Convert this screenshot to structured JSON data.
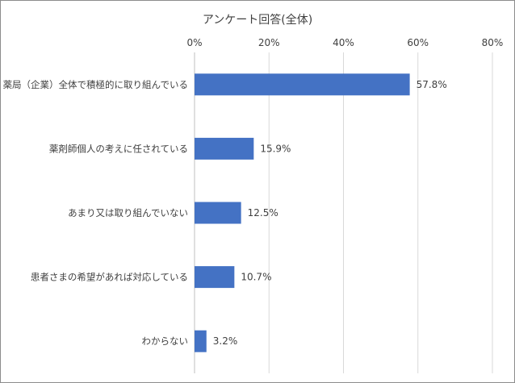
{
  "chart_data": {
    "type": "bar",
    "orientation": "horizontal",
    "title": "アンケート回答(全体)",
    "categories": [
      "薬局（企業）全体で積極的に取り組んでいる",
      "薬剤師個人の考えに任されている",
      "あまり又は取り組んでいない",
      "患者さまの希望があれば対応している",
      "わからない"
    ],
    "values": [
      57.8,
      15.9,
      12.5,
      10.7,
      3.2
    ],
    "value_labels": [
      "57.8%",
      "15.9%",
      "12.5%",
      "10.7%",
      "3.2%"
    ],
    "x_ticks": [
      0,
      20,
      40,
      60,
      80
    ],
    "x_tick_labels": [
      "0%",
      "20%",
      "40%",
      "60%",
      "80%"
    ],
    "xlim": [
      0,
      80
    ],
    "xlabel": "",
    "ylabel": "",
    "grid": true,
    "axis_position": "top",
    "legend": "none",
    "bar_color": "#4472C4"
  }
}
